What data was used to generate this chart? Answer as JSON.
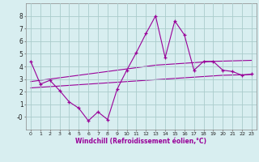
{
  "x": [
    0,
    1,
    2,
    3,
    4,
    5,
    6,
    7,
    8,
    9,
    10,
    11,
    12,
    13,
    14,
    15,
    16,
    17,
    18,
    19,
    20,
    21,
    22,
    23
  ],
  "windchill": [
    4.4,
    2.6,
    2.9,
    2.1,
    1.2,
    0.7,
    -0.3,
    0.4,
    -0.2,
    2.2,
    3.7,
    5.1,
    6.6,
    8.0,
    4.7,
    7.6,
    6.5,
    3.7,
    4.4,
    4.4,
    3.7,
    3.6,
    3.3,
    3.4
  ],
  "reg_upper": [
    2.8,
    2.9,
    3.0,
    3.1,
    3.2,
    3.3,
    3.4,
    3.5,
    3.6,
    3.7,
    3.8,
    3.9,
    4.0,
    4.1,
    4.15,
    4.2,
    4.25,
    4.3,
    4.35,
    4.4,
    4.42,
    4.44,
    4.46,
    4.48
  ],
  "reg_lower": [
    2.3,
    2.35,
    2.4,
    2.45,
    2.5,
    2.55,
    2.6,
    2.65,
    2.7,
    2.75,
    2.8,
    2.85,
    2.9,
    2.95,
    3.0,
    3.05,
    3.1,
    3.15,
    3.2,
    3.25,
    3.3,
    3.32,
    3.34,
    3.36
  ],
  "line_color": "#990099",
  "bg_color": "#d8eef0",
  "grid_color": "#aacccc",
  "xlabel": "Windchill (Refroidissement éolien,°C)",
  "ylim": [
    -1,
    9
  ],
  "xlim": [
    -0.5,
    23.5
  ],
  "yticks": [
    0,
    1,
    2,
    3,
    4,
    5,
    6,
    7,
    8
  ],
  "ytick_labels": [
    "-0",
    "1",
    "2",
    "3",
    "4",
    "5",
    "6",
    "7",
    "8"
  ],
  "xtick_fontsize": 4.5,
  "ytick_fontsize": 5.5,
  "xlabel_fontsize": 5.5
}
